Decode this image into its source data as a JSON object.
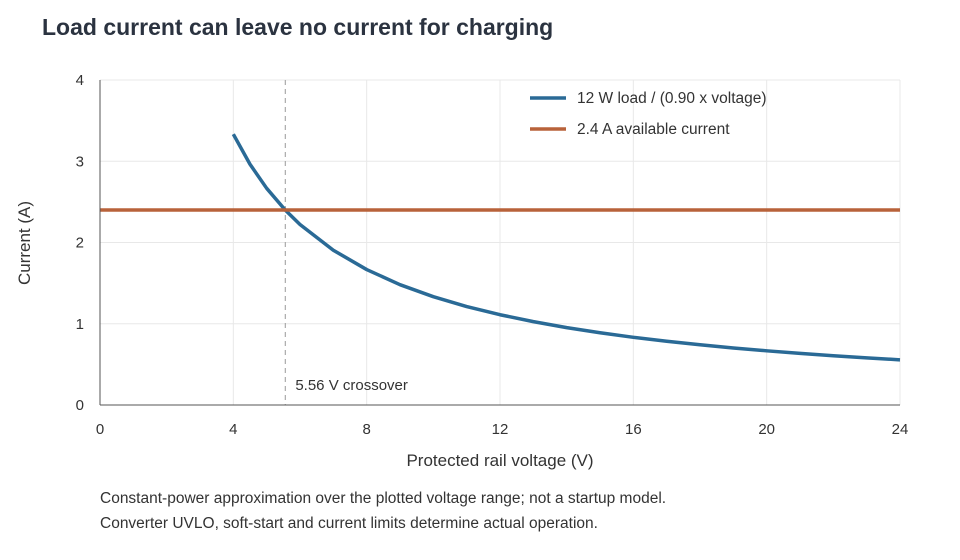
{
  "title": "Load current can leave no current for charging",
  "notes": [
    "Constant-power approximation over the plotted voltage range; not a startup model.",
    "Converter UVLO, soft-start and current limits determine actual operation."
  ],
  "chart_data": {
    "type": "line",
    "title": "Load current can leave no current for charging",
    "xlabel": "Protected rail voltage (V)",
    "ylabel": "Current (A)",
    "xlim": [
      0,
      24
    ],
    "ylim": [
      0,
      4
    ],
    "xticks": [
      0,
      4,
      8,
      12,
      16,
      20,
      24
    ],
    "yticks": [
      0,
      1,
      2,
      3,
      4
    ],
    "grid": true,
    "legend_position": "top-right",
    "series": [
      {
        "name": "12 W load / (0.90 x voltage)",
        "color": "#2a6a96",
        "x": [
          4,
          4.5,
          5,
          5.56,
          6,
          7,
          8,
          9,
          10,
          11,
          12,
          13,
          14,
          15,
          16,
          17,
          18,
          19,
          20,
          21,
          22,
          23,
          24
        ],
        "y": [
          3.333,
          2.963,
          2.667,
          2.398,
          2.222,
          1.905,
          1.667,
          1.481,
          1.333,
          1.212,
          1.111,
          1.026,
          0.952,
          0.889,
          0.833,
          0.784,
          0.741,
          0.702,
          0.667,
          0.635,
          0.606,
          0.58,
          0.556
        ]
      },
      {
        "name": "2.4 A available current",
        "color": "#b8623a",
        "x": [
          0,
          24
        ],
        "y": [
          2.4,
          2.4
        ]
      }
    ],
    "annotations": [
      {
        "type": "vline",
        "x": 5.56,
        "text": "5.56 V crossover",
        "color": "#aaaaaa"
      }
    ]
  }
}
